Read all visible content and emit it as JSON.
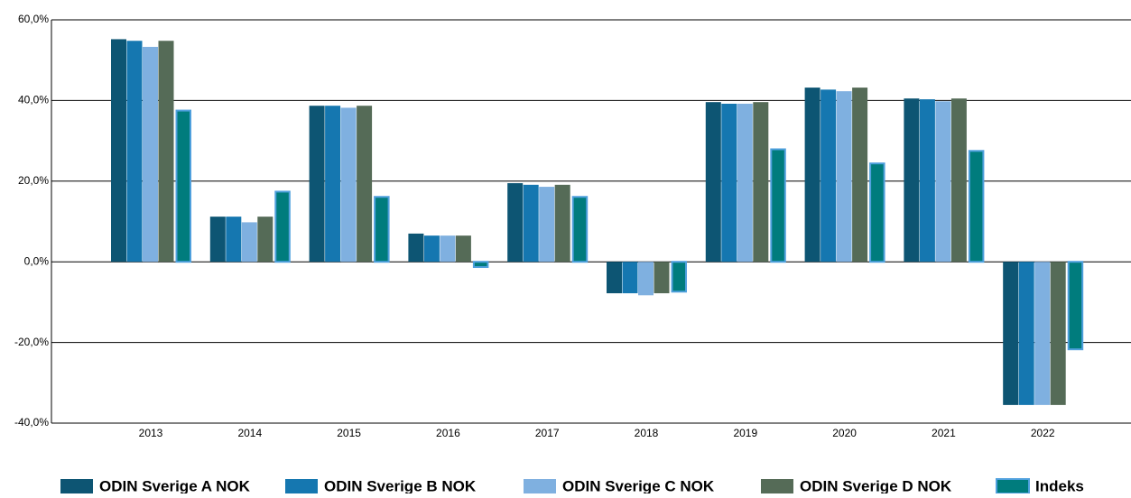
{
  "chart_data": {
    "type": "bar",
    "categories": [
      "2013",
      "2014",
      "2015",
      "2016",
      "2017",
      "2018",
      "2019",
      "2020",
      "2021",
      "2022"
    ],
    "series": [
      {
        "name": "ODIN Sverige A NOK",
        "color": "#0d5573",
        "values": [
          55.2,
          11.2,
          38.7,
          7.0,
          19.5,
          -7.8,
          39.6,
          43.2,
          40.5,
          -35.5
        ]
      },
      {
        "name": "ODIN Sverige B NOK",
        "color": "#1577b0",
        "values": [
          54.8,
          11.2,
          38.7,
          6.5,
          19.1,
          -7.8,
          39.2,
          42.7,
          40.3,
          -35.5
        ]
      },
      {
        "name": "ODIN Sverige C NOK",
        "color": "#7fb0e0",
        "values": [
          53.3,
          9.8,
          38.2,
          6.5,
          18.6,
          -8.3,
          39.2,
          42.3,
          39.8,
          -35.5
        ]
      },
      {
        "name": "ODIN Sverige D NOK",
        "color": "#556b57",
        "values": [
          54.8,
          11.2,
          38.7,
          6.5,
          19.1,
          -7.8,
          39.6,
          43.2,
          40.5,
          -35.5
        ]
      },
      {
        "name": "Indeks",
        "color": "#007c7d",
        "values": [
          37.5,
          17.4,
          16.1,
          -1.3,
          16.1,
          -7.4,
          27.9,
          24.4,
          27.5,
          -21.7
        ]
      }
    ],
    "ylim": [
      -40,
      60
    ],
    "yticks": [
      {
        "value": -40,
        "label": "-40,0%"
      },
      {
        "value": -20,
        "label": "-20,0%"
      },
      {
        "value": 0,
        "label": "0,0%"
      },
      {
        "value": 20,
        "label": "20,0%"
      },
      {
        "value": 40,
        "label": "40,0%"
      },
      {
        "value": 60,
        "label": "60,0%"
      }
    ],
    "grid": true
  }
}
